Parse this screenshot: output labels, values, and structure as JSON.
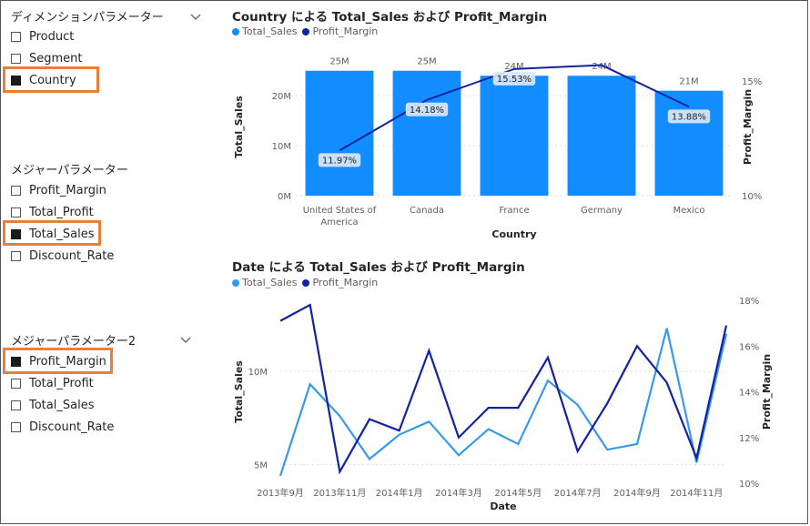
{
  "slicers": [
    {
      "title": "ディメンションパラメーター",
      "items": [
        {
          "label": "Product",
          "checked": false
        },
        {
          "label": "Segment",
          "checked": false
        },
        {
          "label": "Country",
          "checked": true
        }
      ]
    },
    {
      "title": "メジャーパラメーター",
      "items": [
        {
          "label": "Profit_Margin",
          "checked": false
        },
        {
          "label": "Total_Profit",
          "checked": false
        },
        {
          "label": "Total_Sales",
          "checked": true
        },
        {
          "label": "Discount_Rate",
          "checked": false
        }
      ]
    },
    {
      "title": "メジャーパラメーター2",
      "items": [
        {
          "label": "Profit_Margin",
          "checked": true
        },
        {
          "label": "Total_Profit",
          "checked": false
        },
        {
          "label": "Total_Sales",
          "checked": false
        },
        {
          "label": "Discount_Rate",
          "checked": false
        }
      ]
    }
  ],
  "colors": {
    "sales": "#118dff",
    "margin": "#12239e",
    "sales_line": "#3599f0",
    "highlight": "#ea8034"
  },
  "chart_data": [
    {
      "type": "bar",
      "title": "Country による Total_Sales および Profit_Margin",
      "legend": [
        "Total_Sales",
        "Profit_Margin"
      ],
      "legend_position": "top-left",
      "categories": [
        "United States of America",
        "Canada",
        "France",
        "Germany",
        "Mexico"
      ],
      "series": [
        {
          "name": "Total_Sales",
          "type": "bar",
          "values": [
            25,
            25,
            24,
            24,
            21
          ],
          "labels": [
            "25M",
            "25M",
            "24M",
            "24M",
            "21M"
          ]
        },
        {
          "name": "Profit_Margin",
          "type": "line",
          "values": [
            11.97,
            14.18,
            15.53,
            15.7,
            13.88
          ],
          "labels": [
            "11.97%",
            "14.18%",
            "15.53%",
            "",
            "13.88%"
          ]
        }
      ],
      "xlabel": "Country",
      "ylabel": "Total_Sales",
      "y2label": "Profit_Margin",
      "y_ticks": [
        "0M",
        "10M",
        "20M"
      ],
      "ylim": [
        0,
        27.5
      ],
      "y2_ticks": [
        "10%",
        "15%"
      ],
      "y2lim": [
        10,
        16
      ],
      "grid": true
    },
    {
      "type": "line",
      "title": "Date による Total_Sales および Profit_Margin",
      "legend": [
        "Total_Sales",
        "Profit_Margin"
      ],
      "legend_position": "top-left",
      "x_ticks": [
        "2013年9月",
        "2013年11月",
        "2014年1月",
        "2014年3月",
        "2014年5月",
        "2014年7月",
        "2014年9月",
        "2014年11月"
      ],
      "series": [
        {
          "name": "Total_Sales",
          "values": [
            4.4,
            9.3,
            7.6,
            5.3,
            6.6,
            7.3,
            5.5,
            6.9,
            6.1,
            9.5,
            8.2,
            5.8,
            6.1,
            12.3,
            5.1,
            12
          ]
        },
        {
          "name": "Profit_Margin",
          "values": [
            17.1,
            17.8,
            10.5,
            12.8,
            12.3,
            15.8,
            12,
            13.3,
            13.3,
            15.5,
            11.4,
            13.5,
            16,
            14.4,
            11.1,
            16.9
          ]
        }
      ],
      "xlabel": "Date",
      "ylabel": "Total_Sales",
      "y2label": "Profit_Margin",
      "y_ticks": [
        "5M",
        "10M"
      ],
      "ylim": [
        4,
        13.8
      ],
      "y2_ticks": [
        "10%",
        "12%",
        "14%",
        "16%",
        "18%"
      ],
      "y2lim": [
        10,
        18
      ],
      "grid": true
    }
  ]
}
